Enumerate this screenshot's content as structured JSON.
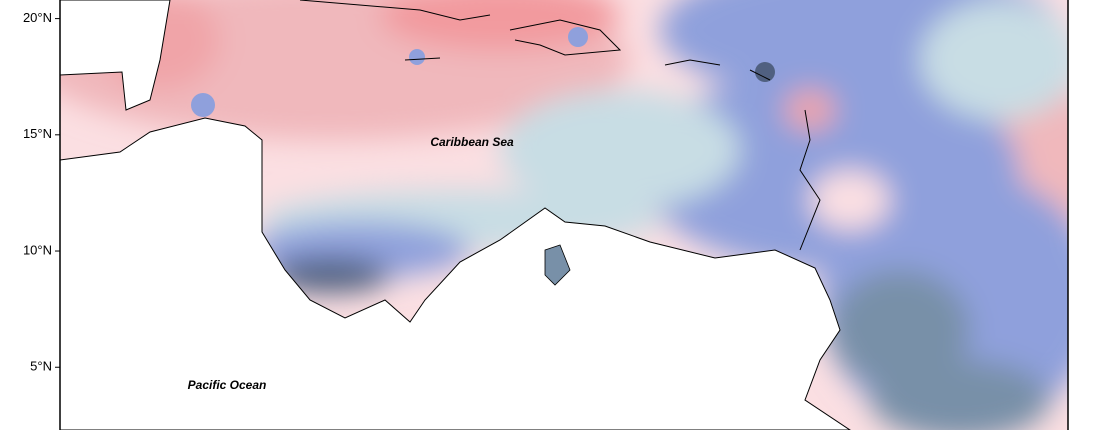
{
  "map": {
    "ylim": [
      2.3,
      20.8
    ],
    "lat_ticks": [
      {
        "value": 20,
        "label": "20°N"
      },
      {
        "value": 15,
        "label": "15°N"
      },
      {
        "value": 10,
        "label": "10°N"
      },
      {
        "value": 5,
        "label": "5°N"
      }
    ],
    "labels": {
      "sea": "Caribbean Sea",
      "ocean": "Pacific Ocean"
    }
  }
}
